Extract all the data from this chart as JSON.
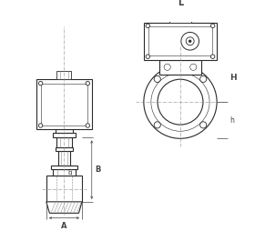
{
  "lc": "#2a2a2a",
  "dc": "#444444",
  "hc": "#888888",
  "lw_main": 0.8,
  "lw_thin": 0.4,
  "lw_dim": 0.5,
  "label_L": "L",
  "label_H": "H",
  "label_B": "B",
  "label_A": "A",
  "label_b": "b",
  "label_h": "h"
}
